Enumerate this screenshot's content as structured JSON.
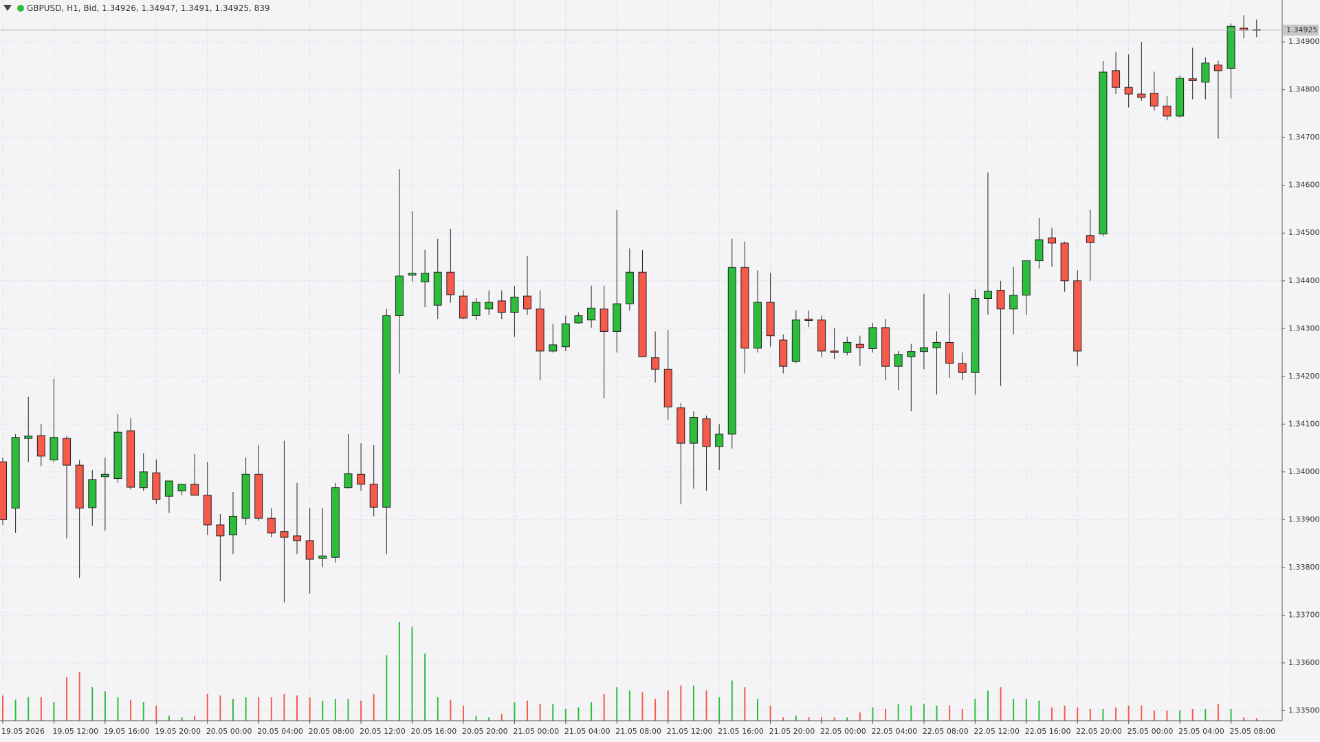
{
  "chart_data": {
    "type": "candlestick",
    "symbol": "GBPUSD",
    "timeframe": "H1",
    "price_type": "Bid",
    "up_color": "#2dbd3c",
    "down_color": "#f55a4a",
    "grid": true,
    "categories": [
      "19.05 2026",
      null,
      null,
      null,
      "19.05 12:00",
      null,
      null,
      null,
      "19.05 16:00",
      null,
      null,
      null,
      "19.05 20:00",
      null,
      null,
      null,
      "20.05 00:00",
      null,
      null,
      null,
      "20.05 04:00",
      null,
      null,
      null,
      "20.05 08:00",
      null,
      null,
      null,
      "20.05 12:00",
      null,
      null,
      null,
      "20.05 16:00",
      null,
      null,
      null,
      "20.05 20:00",
      null,
      null,
      null,
      "21.05 00:00",
      null,
      null,
      null,
      "21.05 04:00",
      null,
      null,
      null,
      "21.05 08:00",
      null,
      null,
      null,
      "21.05 12:00",
      null,
      null,
      null,
      "21.05 16:00",
      null,
      null,
      null,
      "21.05 20:00",
      null,
      null,
      null,
      "22.05 00:00",
      null,
      null,
      null,
      "22.05 04:00",
      null,
      null,
      null,
      "22.05 08:00",
      null,
      null,
      null,
      "22.05 12:00",
      null,
      null,
      null,
      "22.05 16:00",
      null,
      null,
      null,
      "22.05 20:00",
      null,
      null,
      null,
      "25.05 00:00",
      null,
      null,
      null,
      "25.05 04:00",
      null,
      null,
      null,
      "25.05 08:00",
      null,
      null
    ],
    "open": [
      1.34021,
      1.33924,
      1.3407,
      1.34076,
      1.34025,
      1.3407,
      1.34014,
      1.33925,
      1.3399,
      1.33986,
      1.34086,
      1.33967,
      1.33998,
      1.33949,
      1.3396,
      1.33974,
      1.33951,
      1.33889,
      1.33868,
      1.33903,
      1.33995,
      1.33903,
      1.33875,
      1.33866,
      1.33856,
      1.33819,
      1.33821,
      1.33967,
      1.33995,
      1.33974,
      1.33926,
      1.34327,
      1.34412,
      1.34398,
      1.34349,
      1.34418,
      1.34368,
      1.34327,
      1.34341,
      1.34358,
      1.34334,
      1.34368,
      1.34341,
      1.34253,
      1.34262,
      1.34312,
      1.34318,
      1.34341,
      1.34294,
      1.34352,
      1.34418,
      1.34239,
      1.34215,
      1.34134,
      1.3406,
      1.34111,
      1.34053,
      1.34079,
      1.34428,
      1.34259,
      1.34355,
      1.34276,
      1.34231,
      1.3432,
      1.34318,
      1.34253,
      1.3425,
      1.34267,
      1.34258,
      1.34302,
      1.34221,
      1.34241,
      1.34252,
      1.3426,
      1.34271,
      1.34227,
      1.34208,
      1.34363,
      1.3438,
      1.34341,
      1.3437,
      1.34442,
      1.3449,
      1.34479,
      1.344,
      1.34495,
      1.34498,
      1.3484,
      1.34805,
      1.34791,
      1.34793,
      1.34766,
      1.34745,
      1.34823,
      1.34816,
      1.34852,
      1.34845,
      1.34929,
      1.34926
    ],
    "high": [
      1.3403,
      1.34079,
      1.34157,
      1.341,
      1.34195,
      1.34075,
      1.34025,
      1.34004,
      1.3403,
      1.34121,
      1.34113,
      1.34039,
      1.34026,
      1.33981,
      1.33974,
      1.34037,
      1.34021,
      1.33912,
      1.33958,
      1.3403,
      1.34056,
      1.33924,
      1.34065,
      1.33977,
      1.33924,
      1.33924,
      1.33977,
      1.34079,
      1.3406,
      1.34056,
      1.34341,
      1.34634,
      1.34546,
      1.34465,
      1.34488,
      1.34509,
      1.3438,
      1.34364,
      1.3438,
      1.3438,
      1.34389,
      1.34452,
      1.3438,
      1.3431,
      1.34327,
      1.34334,
      1.3439,
      1.3439,
      1.34548,
      1.34468,
      1.34464,
      1.34294,
      1.34297,
      1.34144,
      1.34127,
      1.34118,
      1.341,
      1.34488,
      1.34482,
      1.34422,
      1.34417,
      1.34288,
      1.34338,
      1.34338,
      1.34327,
      1.34301,
      1.34283,
      1.34285,
      1.34312,
      1.3432,
      1.34253,
      1.34268,
      1.34373,
      1.34294,
      1.34373,
      1.3425,
      1.34382,
      1.34627,
      1.344,
      1.34429,
      1.34442,
      1.34532,
      1.34511,
      1.34482,
      1.34422,
      1.34549,
      1.3486,
      1.34879,
      1.34874,
      1.349,
      1.34838,
      1.34787,
      1.3483,
      1.34888,
      1.34868,
      1.34861,
      1.34939,
      1.34956,
      1.34947
    ],
    "low": [
      1.33889,
      1.33872,
      1.3402,
      1.34012,
      1.3402,
      1.33861,
      1.33778,
      1.33887,
      1.33877,
      1.33977,
      1.33963,
      1.3396,
      1.33933,
      1.33914,
      1.33951,
      1.33951,
      1.33868,
      1.33771,
      1.33828,
      1.33889,
      1.33898,
      1.33863,
      1.33727,
      1.33828,
      1.33745,
      1.33801,
      1.3381,
      1.33965,
      1.3396,
      1.33907,
      1.33828,
      1.34206,
      1.34398,
      1.34345,
      1.3432,
      1.34354,
      1.3432,
      1.34318,
      1.34329,
      1.3432,
      1.34283,
      1.34329,
      1.34192,
      1.3425,
      1.34253,
      1.3431,
      1.34302,
      1.34154,
      1.3425,
      1.34338,
      1.3424,
      1.34187,
      1.34109,
      1.33932,
      1.33965,
      1.3396,
      1.34004,
      1.34049,
      1.34206,
      1.3425,
      1.34262,
      1.34206,
      1.34227,
      1.34303,
      1.34241,
      1.34236,
      1.34244,
      1.34222,
      1.3425,
      1.34192,
      1.34171,
      1.34127,
      1.34215,
      1.34162,
      1.34197,
      1.34192,
      1.34162,
      1.34329,
      1.3418,
      1.34288,
      1.34329,
      1.34426,
      1.34429,
      1.34377,
      1.34222,
      1.344,
      1.34493,
      1.34791,
      1.34763,
      1.34777,
      1.34756,
      1.34736,
      1.34742,
      1.3478,
      1.3478,
      1.34698,
      1.34782,
      1.34908,
      1.3491
    ],
    "close": [
      1.339,
      1.34072,
      1.34075,
      1.34033,
      1.34072,
      1.34014,
      1.33924,
      1.33984,
      1.33995,
      1.34083,
      1.33968,
      1.34,
      1.33942,
      1.33981,
      1.33974,
      1.33951,
      1.33889,
      1.33866,
      1.33907,
      1.33995,
      1.33903,
      1.33872,
      1.33863,
      1.33856,
      1.33817,
      1.33824,
      1.33967,
      1.33996,
      1.33974,
      1.33926,
      1.34327,
      1.3441,
      1.34416,
      1.34416,
      1.34418,
      1.34371,
      1.34322,
      1.34355,
      1.34355,
      1.34334,
      1.34366,
      1.34341,
      1.34253,
      1.34266,
      1.3431,
      1.34327,
      1.34343,
      1.34294,
      1.34352,
      1.34418,
      1.34241,
      1.34215,
      1.34136,
      1.3406,
      1.34114,
      1.34053,
      1.34079,
      1.34428,
      1.34259,
      1.34355,
      1.34285,
      1.34221,
      1.34318,
      1.34317,
      1.34253,
      1.3425,
      1.34271,
      1.3426,
      1.34302,
      1.34221,
      1.34246,
      1.34252,
      1.3426,
      1.34271,
      1.34227,
      1.34208,
      1.34363,
      1.34378,
      1.34341,
      1.3437,
      1.34442,
      1.34486,
      1.34479,
      1.344,
      1.34253,
      1.3448,
      1.34837,
      1.34805,
      1.34791,
      1.34784,
      1.34766,
      1.34745,
      1.34824,
      1.34819,
      1.34856,
      1.3484,
      1.34933,
      1.34925,
      1.34925
    ],
    "volume": [
      8400,
      7000,
      7840,
      7840,
      6160,
      14560,
      16240,
      11200,
      9800,
      7840,
      7000,
      6160,
      5040,
      1680,
      1120,
      1680,
      8960,
      8400,
      7280,
      7840,
      7840,
      7840,
      8960,
      8400,
      7840,
      6720,
      7280,
      7280,
      6720,
      8960,
      21840,
      33040,
      31360,
      22400,
      7840,
      7000,
      5040,
      1680,
      1120,
      2240,
      6160,
      6720,
      5600,
      5600,
      3920,
      4480,
      6160,
      8960,
      11200,
      10080,
      9520,
      7280,
      10080,
      11760,
      11760,
      10080,
      7840,
      13440,
      11200,
      7280,
      5040,
      1120,
      1680,
      1120,
      1120,
      1120,
      1120,
      2800,
      4480,
      3920,
      5600,
      5040,
      5600,
      5040,
      5040,
      3920,
      7280,
      10080,
      11200,
      7280,
      7280,
      6720,
      4480,
      5040,
      4480,
      3920,
      3920,
      4480,
      5040,
      5040,
      3360,
      3360,
      3360,
      3920,
      3920,
      5600,
      3920,
      1120,
      839
    ],
    "ylim": [
      1.33479,
      1.34988
    ],
    "yticks": [
      {
        "value": 1.335,
        "label": "1.33500"
      },
      {
        "value": 1.336,
        "label": "1.33600"
      },
      {
        "value": 1.337,
        "label": "1.33700"
      },
      {
        "value": 1.338,
        "label": "1.33800"
      },
      {
        "value": 1.339,
        "label": "1.33900"
      },
      {
        "value": 1.34,
        "label": "1.34000"
      },
      {
        "value": 1.341,
        "label": "1.34100"
      },
      {
        "value": 1.342,
        "label": "1.34200"
      },
      {
        "value": 1.343,
        "label": "1.34300"
      },
      {
        "value": 1.344,
        "label": "1.34400"
      },
      {
        "value": 1.345,
        "label": "1.34500"
      },
      {
        "value": 1.346,
        "label": "1.34600"
      },
      {
        "value": 1.347,
        "label": "1.34700"
      },
      {
        "value": 1.348,
        "label": "1.34800"
      },
      {
        "value": 1.349,
        "label": "1.34900"
      }
    ]
  }
}
